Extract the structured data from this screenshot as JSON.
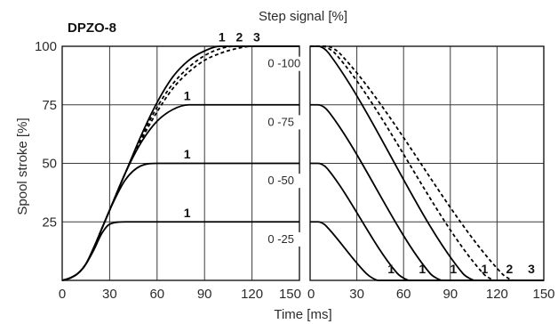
{
  "chart_data": {
    "type": "line",
    "title": "DPZO-8",
    "top_label": "Step signal [%]",
    "xlabel": "Time [ms]",
    "ylabel": "Spool stroke [%]",
    "ylim": [
      0,
      100
    ],
    "yticks": [
      25,
      50,
      75,
      100
    ],
    "ytick_labels": [
      "25",
      "50",
      "75",
      "100"
    ],
    "grid": true,
    "panels": [
      {
        "name": "opening",
        "xlim": [
          0,
          150
        ],
        "xticks": [
          0,
          30,
          60,
          90,
          120,
          150
        ],
        "xtick_labels": [
          "0",
          "30",
          "60",
          "90",
          "120",
          "150"
        ],
        "step_labels": [
          {
            "text": "0 -100",
            "x": 130,
            "y": 91
          },
          {
            "text": "0 -75",
            "x": 130,
            "y": 66
          },
          {
            "text": "0 -50",
            "x": 130,
            "y": 41
          },
          {
            "text": "0 -25",
            "x": 130,
            "y": 16
          }
        ],
        "curve_labels": [
          {
            "text": "1",
            "x": 101,
            "y": 102
          },
          {
            "text": "2",
            "x": 112,
            "y": 102
          },
          {
            "text": "3",
            "x": 123,
            "y": 102
          },
          {
            "text": "1",
            "x": 79,
            "y": 77
          },
          {
            "text": "1",
            "x": 79,
            "y": 52
          },
          {
            "text": "1",
            "x": 79,
            "y": 27
          }
        ],
        "series": [
          {
            "style": "solid",
            "x": [
              0,
              5,
              10,
              15,
              20,
              25,
              30,
              40,
              50,
              60,
              70,
              80,
              90,
              100,
              110,
              120,
              150
            ],
            "y": [
              0,
              1,
              3,
              7,
              14,
              22,
              30,
              46,
              62,
              76,
              87,
              94,
              98,
              100,
              100,
              100,
              100
            ]
          },
          {
            "style": "dashed",
            "x": [
              0,
              5,
              10,
              15,
              20,
              25,
              30,
              40,
              50,
              60,
              70,
              80,
              90,
              100,
              110,
              120,
              150
            ],
            "y": [
              0,
              1,
              3,
              7,
              14,
              22,
              30,
              46,
              61,
              74,
              84,
              91,
              96,
              99,
              100,
              100,
              100
            ]
          },
          {
            "style": "dashed",
            "x": [
              0,
              5,
              10,
              15,
              20,
              25,
              30,
              40,
              50,
              60,
              70,
              80,
              90,
              100,
              110,
              120,
              150
            ],
            "y": [
              0,
              1,
              3,
              7,
              14,
              22,
              30,
              46,
              60,
              72,
              82,
              89,
              94,
              97,
              99,
              100,
              100
            ]
          },
          {
            "style": "solid",
            "x": [
              0,
              5,
              10,
              15,
              20,
              25,
              30,
              40,
              50,
              60,
              70,
              80,
              90,
              150
            ],
            "y": [
              0,
              1,
              3,
              7,
              14,
              22,
              30,
              46,
              59,
              68,
              73,
              75,
              75,
              75
            ]
          },
          {
            "style": "solid",
            "x": [
              0,
              5,
              10,
              15,
              20,
              25,
              30,
              40,
              50,
              60,
              70,
              150
            ],
            "y": [
              0,
              1,
              3,
              7,
              14,
              22,
              30,
              43,
              49,
              50,
              50,
              50
            ]
          },
          {
            "style": "solid",
            "x": [
              0,
              5,
              10,
              15,
              20,
              25,
              30,
              40,
              50,
              150
            ],
            "y": [
              0,
              1,
              3,
              7,
              13,
              20,
              24,
              25,
              25,
              25
            ]
          }
        ]
      },
      {
        "name": "closing",
        "xlim": [
          0,
          150
        ],
        "xticks": [
          0,
          30,
          60,
          90,
          120,
          150
        ],
        "xtick_labels": [
          "0",
          "30",
          "60",
          "90",
          "120",
          "150"
        ],
        "curve_labels": [
          {
            "text": "1",
            "x": 52,
            "y": 3
          },
          {
            "text": "1",
            "x": 72,
            "y": 3
          },
          {
            "text": "1",
            "x": 92,
            "y": 3
          },
          {
            "text": "1",
            "x": 112,
            "y": 3
          },
          {
            "text": "2",
            "x": 128,
            "y": 3
          },
          {
            "text": "3",
            "x": 142,
            "y": 3
          }
        ],
        "series": [
          {
            "style": "solid",
            "x": [
              0,
              5,
              9,
              12,
              36,
              40,
              44,
              150
            ],
            "y": [
              25,
              25,
              24,
              22,
              3,
              1,
              0,
              0
            ]
          },
          {
            "style": "solid",
            "x": [
              0,
              5,
              9,
              12,
              56,
              60,
              64,
              150
            ],
            "y": [
              50,
              50,
              49,
              47,
              3,
              1,
              0,
              0
            ]
          },
          {
            "style": "solid",
            "x": [
              0,
              5,
              9,
              12,
              77,
              81,
              85,
              150
            ],
            "y": [
              75,
              75,
              74,
              72,
              3,
              1,
              0,
              0
            ]
          },
          {
            "style": "solid",
            "x": [
              0,
              5,
              9,
              12,
              98,
              102,
              106,
              150
            ],
            "y": [
              100,
              100,
              99,
              97,
              3,
              1,
              0,
              0
            ]
          },
          {
            "style": "dashed",
            "x": [
              0,
              8,
              12,
              16,
              111,
              115,
              119,
              150
            ],
            "y": [
              100,
              100,
              99,
              97,
              3,
              1,
              0,
              0
            ]
          },
          {
            "style": "dashed",
            "x": [
              0,
              11,
              15,
              19,
              123,
              127,
              131,
              150
            ],
            "y": [
              100,
              100,
              99,
              97,
              3,
              1,
              0,
              0
            ]
          }
        ]
      }
    ]
  }
}
